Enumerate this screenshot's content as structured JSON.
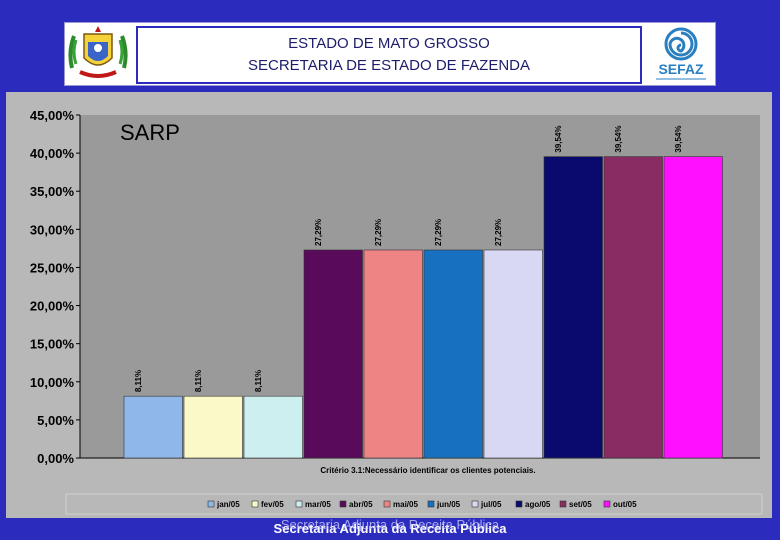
{
  "header": {
    "line1": "ESTADO DE MATO GROSSO",
    "line2": "SECRETARIA DE ESTADO DE FAZENDA",
    "logo_text": "SEFAZ"
  },
  "footer": {
    "text": "Secretaria Adjunta da Receita Pública",
    "ghost_text": "Secretaria Adjunta da Receita Pública"
  },
  "colors": {
    "background": "#2b2bbd",
    "plot_bg": "#9a9a9a",
    "panel_bg": "#b8b8b8"
  },
  "chart_data": {
    "type": "bar",
    "title": "SARP",
    "xlabel": "Critério 3.1:Necessário identificar os clientes potenciais.",
    "ylabel": "",
    "ylim": [
      0,
      45
    ],
    "yticks": [
      "0,00%",
      "5,00%",
      "10,00%",
      "15,00%",
      "20,00%",
      "25,00%",
      "30,00%",
      "35,00%",
      "40,00%",
      "45,00%"
    ],
    "legend_position": "bottom",
    "series": [
      {
        "name": "jan/05",
        "value": 8.11,
        "label": "8,11%",
        "color": "#8fb8e8"
      },
      {
        "name": "fev/05",
        "value": 8.11,
        "label": "8,11%",
        "color": "#fafac8"
      },
      {
        "name": "mar/05",
        "value": 8.11,
        "label": "8,11%",
        "color": "#cdeff0"
      },
      {
        "name": "abr/05",
        "value": 27.29,
        "label": "27,29%",
        "color": "#5a0a5a"
      },
      {
        "name": "mai/05",
        "value": 27.29,
        "label": "27,29%",
        "color": "#ee8484"
      },
      {
        "name": "jun/05",
        "value": 27.29,
        "label": "27,29%",
        "color": "#1870c0"
      },
      {
        "name": "jul/05",
        "value": 27.29,
        "label": "27,29%",
        "color": "#d8d8f4"
      },
      {
        "name": "ago/05",
        "value": 39.54,
        "label": "39,54%",
        "color": "#0a0a6e"
      },
      {
        "name": "set/05",
        "value": 39.54,
        "label": "39,54%",
        "color": "#8a2c64"
      },
      {
        "name": "out/05",
        "value": 39.54,
        "label": "39,54%",
        "color": "#ff10ff"
      }
    ]
  }
}
